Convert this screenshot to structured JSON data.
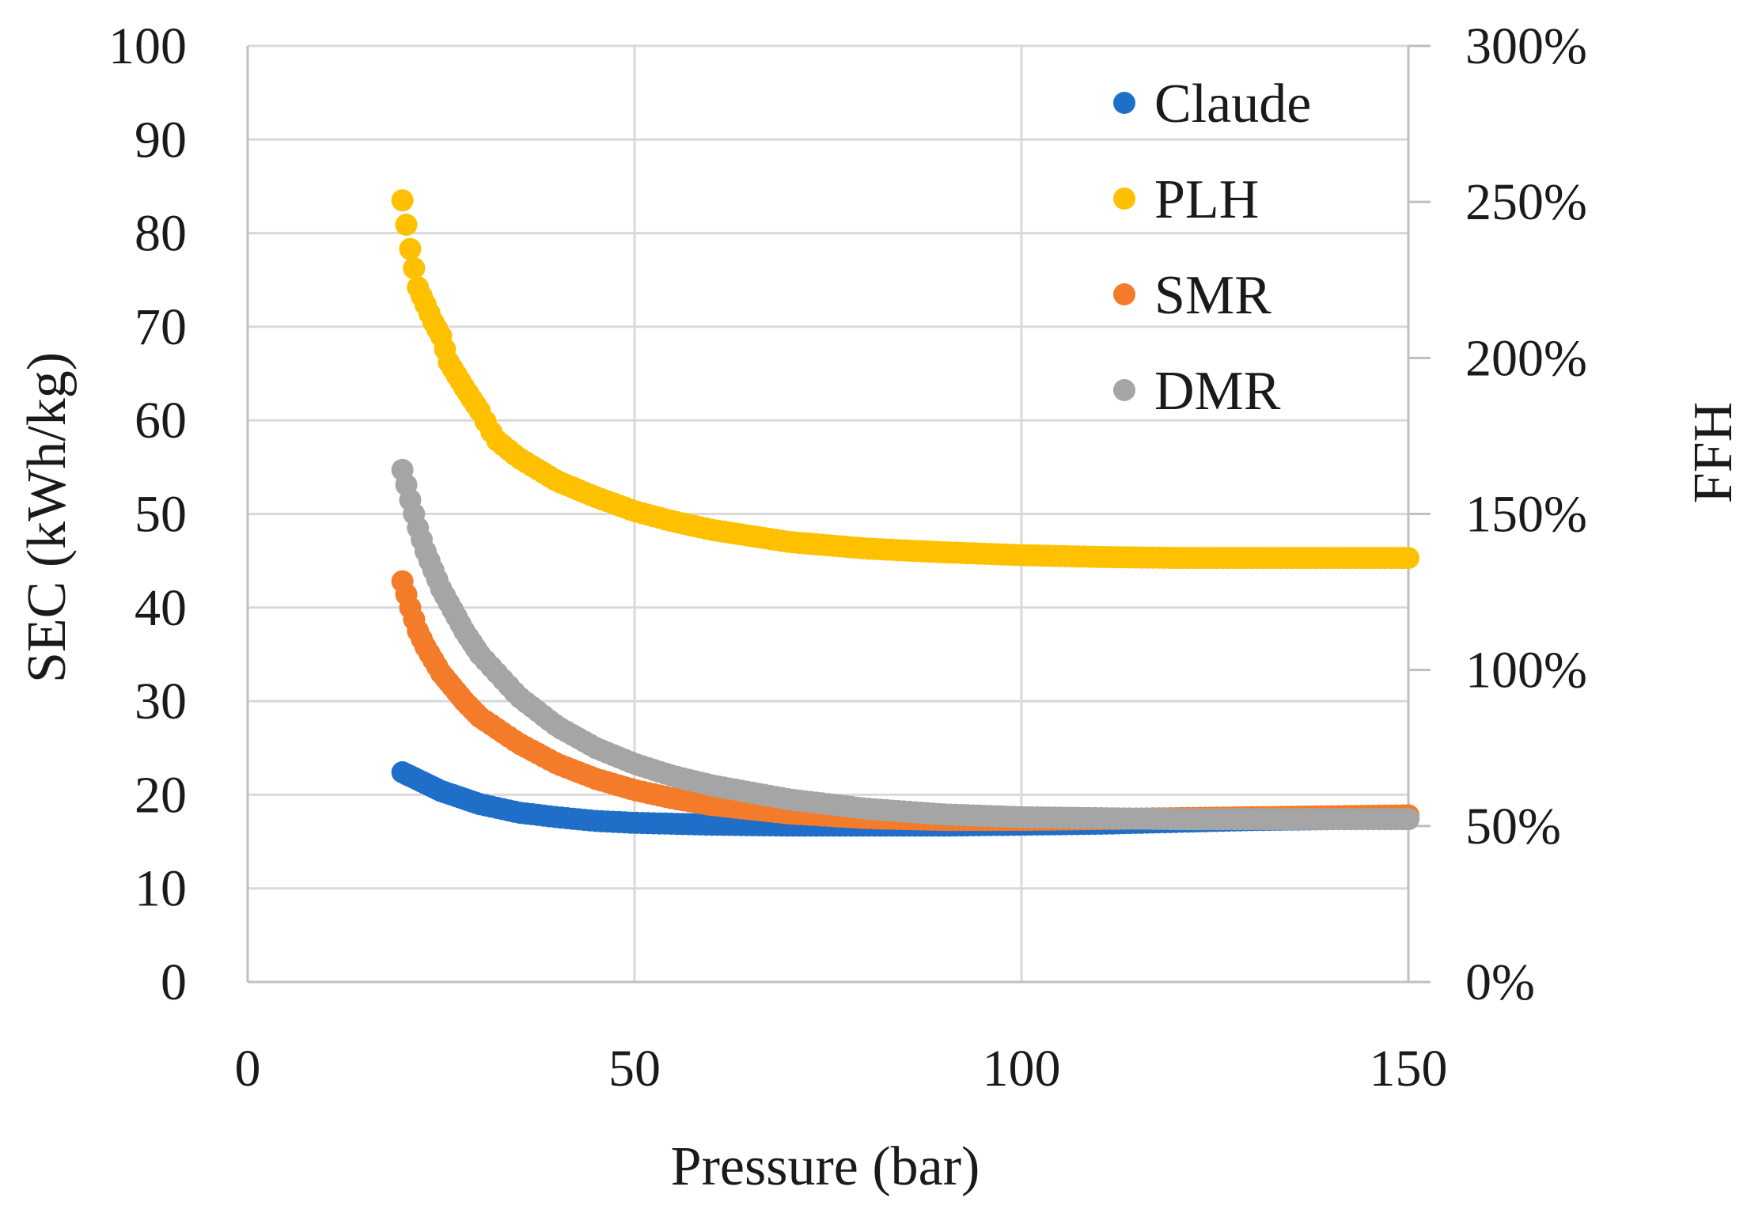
{
  "chart_data": {
    "type": "scatter",
    "title": "",
    "xlabel": "Pressure (bar)",
    "ylabel": "SEC (kWh/kg)",
    "y2label": "FFH",
    "xlim": [
      0,
      150
    ],
    "ylim": [
      0,
      100
    ],
    "y2lim": [
      0,
      3
    ],
    "xticks": [
      "0",
      "50",
      "100",
      "150"
    ],
    "yticks": [
      "0",
      "10",
      "20",
      "30",
      "40",
      "50",
      "60",
      "70",
      "80",
      "90",
      "100"
    ],
    "y2ticks": [
      "0%",
      "50%",
      "100%",
      "150%",
      "200%",
      "250%",
      "300%"
    ],
    "grid": true,
    "legend_position": "top-right",
    "x_range_of_series": [
      20,
      150
    ],
    "series": [
      {
        "name": "Claude",
        "color": "#1f6fc9",
        "points": [
          [
            20,
            22.4
          ],
          [
            22,
            21.6
          ],
          [
            25,
            20.4
          ],
          [
            30,
            19.0
          ],
          [
            35,
            18.1
          ],
          [
            40,
            17.6
          ],
          [
            45,
            17.2
          ],
          [
            50,
            17.0
          ],
          [
            60,
            16.8
          ],
          [
            70,
            16.7
          ],
          [
            80,
            16.7
          ],
          [
            90,
            16.7
          ],
          [
            100,
            16.8
          ],
          [
            110,
            16.9
          ],
          [
            120,
            17.1
          ],
          [
            130,
            17.3
          ],
          [
            140,
            17.4
          ],
          [
            150,
            17.5
          ]
        ]
      },
      {
        "name": "PLH",
        "color": "#ffc000",
        "points": [
          [
            20,
            83.5
          ],
          [
            21,
            78.3
          ],
          [
            22,
            74.2
          ],
          [
            24,
            70.5
          ],
          [
            25,
            69.0
          ],
          [
            26,
            66.2
          ],
          [
            28,
            63.5
          ],
          [
            30,
            61.0
          ],
          [
            32,
            58.0
          ],
          [
            35,
            56.0
          ],
          [
            40,
            53.5
          ],
          [
            45,
            51.8
          ],
          [
            50,
            50.3
          ],
          [
            55,
            49.2
          ],
          [
            60,
            48.3
          ],
          [
            70,
            47.0
          ],
          [
            80,
            46.3
          ],
          [
            90,
            45.9
          ],
          [
            100,
            45.6
          ],
          [
            110,
            45.4
          ],
          [
            120,
            45.3
          ],
          [
            130,
            45.3
          ],
          [
            140,
            45.3
          ],
          [
            150,
            45.3
          ]
        ]
      },
      {
        "name": "SMR",
        "color": "#f47b2a",
        "points": [
          [
            20,
            42.8
          ],
          [
            21,
            40.0
          ],
          [
            22,
            37.5
          ],
          [
            23,
            35.8
          ],
          [
            25,
            33.0
          ],
          [
            28,
            30.0
          ],
          [
            30,
            28.3
          ],
          [
            35,
            25.5
          ],
          [
            40,
            23.3
          ],
          [
            45,
            21.7
          ],
          [
            50,
            20.5
          ],
          [
            55,
            19.6
          ],
          [
            60,
            18.9
          ],
          [
            70,
            18.0
          ],
          [
            80,
            17.5
          ],
          [
            90,
            17.3
          ],
          [
            100,
            17.3
          ],
          [
            110,
            17.4
          ],
          [
            120,
            17.5
          ],
          [
            130,
            17.6
          ],
          [
            140,
            17.7
          ],
          [
            150,
            17.8
          ]
        ]
      },
      {
        "name": "DMR",
        "color": "#a5a5a5",
        "points": [
          [
            20,
            54.7
          ],
          [
            21,
            51.5
          ],
          [
            22,
            48.5
          ],
          [
            23,
            46.0
          ],
          [
            25,
            42.0
          ],
          [
            28,
            37.5
          ],
          [
            30,
            35.0
          ],
          [
            35,
            30.5
          ],
          [
            40,
            27.3
          ],
          [
            45,
            25.0
          ],
          [
            50,
            23.3
          ],
          [
            55,
            22.0
          ],
          [
            60,
            21.0
          ],
          [
            70,
            19.5
          ],
          [
            80,
            18.5
          ],
          [
            90,
            17.9
          ],
          [
            100,
            17.6
          ],
          [
            110,
            17.5
          ],
          [
            120,
            17.4
          ],
          [
            130,
            17.4
          ],
          [
            140,
            17.4
          ],
          [
            150,
            17.4
          ]
        ]
      }
    ]
  }
}
